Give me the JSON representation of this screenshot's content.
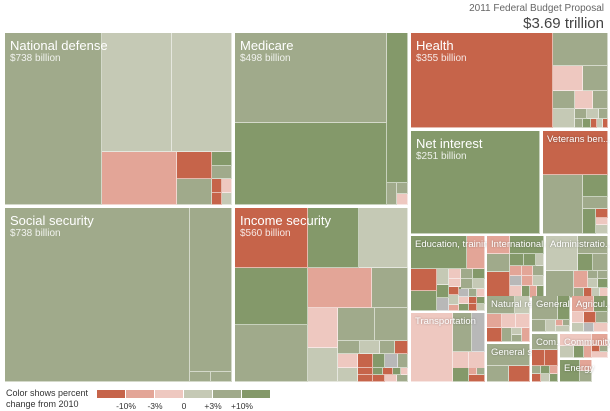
{
  "header": {
    "subtitle": "2011 Federal Budget Proposal",
    "total": "$3.69 trillion"
  },
  "legend": {
    "caption_line1": "Color shows percent",
    "caption_line2": "change from 2010",
    "colors": [
      "#c6644a",
      "#e3a597",
      "#eec8c0",
      "#c5c9b5",
      "#a0aa8b",
      "#84996a"
    ],
    "ticks": [
      "-10%",
      "-3%",
      "0",
      "+3%",
      "+10%"
    ]
  },
  "chart_data": {
    "type": "treemap",
    "title": "2011 Federal Budget Proposal",
    "subtitle": "$3.69 trillion",
    "color_meaning": "percent change from 2010",
    "color_scale": [
      {
        "range": "< -10%",
        "color": "#c6644a"
      },
      {
        "range": "-10% to -3%",
        "color": "#e3a597"
      },
      {
        "range": "-3% to 0",
        "color": "#eec8c0"
      },
      {
        "range": "0 to +3%",
        "color": "#c5c9b5"
      },
      {
        "range": "+3% to +10%",
        "color": "#a0aa8b"
      },
      {
        "range": "> +10%",
        "color": "#84996a"
      }
    ],
    "categories": [
      {
        "name": "National defense",
        "label": "National defense",
        "amount": "$738 billion",
        "value": 738,
        "color": "#a0aa8b"
      },
      {
        "name": "Social security",
        "label": "Social security",
        "amount": "$738 billion",
        "value": 738,
        "color": "#a0aa8b"
      },
      {
        "name": "Medicare",
        "label": "Medicare",
        "amount": "$498 billion",
        "value": 498,
        "color": "#a0aa8b"
      },
      {
        "name": "Income security",
        "label": "Income security",
        "amount": "$560 billion",
        "value": 560,
        "color": "#84996a"
      },
      {
        "name": "Health",
        "label": "Health",
        "amount": "$355 billion",
        "value": 355,
        "color": "#c6644a"
      },
      {
        "name": "Net interest",
        "label": "Net interest",
        "amount": "$251 billion",
        "value": 251,
        "color": "#84996a"
      },
      {
        "name": "Veterans benefits",
        "label": "Veterans ben...",
        "color": "#c6644a"
      },
      {
        "name": "Education, training",
        "label": "Education, trainin...",
        "color": "#84996a"
      },
      {
        "name": "International affairs",
        "label": "International a...",
        "color": "#e3a597"
      },
      {
        "name": "Administration of justice",
        "label": "Administratio...",
        "color": "#c5c9b5"
      },
      {
        "name": "Natural resources",
        "label": "Natural res...",
        "color": "#a0aa8b"
      },
      {
        "name": "General government",
        "label": "General ...",
        "color": "#a0aa8b"
      },
      {
        "name": "Agriculture",
        "label": "Agricul...",
        "color": "#eec8c0"
      },
      {
        "name": "Transportation",
        "label": "Transportation",
        "color": "#eec8c0"
      },
      {
        "name": "General science",
        "label": "General sc...",
        "color": "#a0aa8b"
      },
      {
        "name": "Commerce",
        "label": "Com...",
        "color": "#a0aa8b"
      },
      {
        "name": "Community",
        "label": "Community",
        "color": "#eec8c0"
      },
      {
        "name": "Energy",
        "label": "Energy",
        "color": "#84996a"
      }
    ]
  }
}
